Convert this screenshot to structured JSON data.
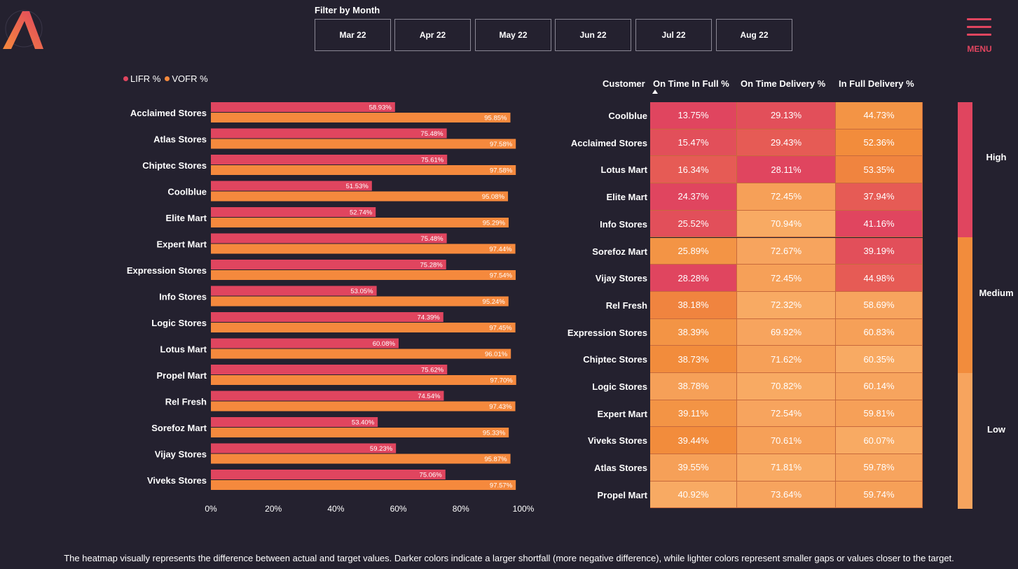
{
  "filter": {
    "title": "Filter by Month",
    "months": [
      "Mar 22",
      "Apr 22",
      "May 22",
      "Jun 22",
      "Jul 22",
      "Aug 22"
    ]
  },
  "menu": {
    "label": "MENU"
  },
  "colors": {
    "background": "#24212f",
    "lifr": "#e0455f",
    "vofr": "#f5893d",
    "high": "#e0455f",
    "medium": "#f28c3c",
    "low": "#f7a45e"
  },
  "legend": {
    "lifr": "LIFR %",
    "vofr": "VOFR %"
  },
  "chart_data": {
    "type": "bar",
    "orientation": "horizontal",
    "categories": [
      "Acclaimed Stores",
      "Atlas Stores",
      "Chiptec Stores",
      "Coolblue",
      "Elite Mart",
      "Expert Mart",
      "Expression Stores",
      "Info Stores",
      "Logic Stores",
      "Lotus Mart",
      "Propel Mart",
      "Rel Fresh",
      "Sorefoz Mart",
      "Vijay Stores",
      "Viveks Stores"
    ],
    "series": [
      {
        "name": "LIFR %",
        "values": [
          58.93,
          75.48,
          75.61,
          51.53,
          52.74,
          75.48,
          75.28,
          53.05,
          74.39,
          60.08,
          75.62,
          74.54,
          53.4,
          59.23,
          75.06
        ],
        "labels": [
          "58.93%",
          "75.48%",
          "75.61%",
          "51.53%",
          "52.74%",
          "75.48%",
          "75.28%",
          "53.05%",
          "74.39%",
          "60.08%",
          "75.62%",
          "74.54%",
          "53.40%",
          "59.23%",
          "75.06%"
        ]
      },
      {
        "name": "VOFR %",
        "values": [
          95.85,
          97.58,
          97.58,
          95.08,
          95.29,
          97.44,
          97.54,
          95.24,
          97.45,
          96.01,
          97.7,
          97.43,
          95.33,
          95.87,
          97.57
        ],
        "labels": [
          "95.85%",
          "97.58%",
          "97.58%",
          "95.08%",
          "95.29%",
          "97.44%",
          "97.54%",
          "95.24%",
          "97.45%",
          "96.01%",
          "97.70%",
          "97.43%",
          "95.33%",
          "95.87%",
          "97.57%"
        ]
      }
    ],
    "xlim": [
      0,
      100
    ],
    "xticks": [
      "0%",
      "20%",
      "40%",
      "60%",
      "80%",
      "100%"
    ],
    "legend_position": "top-left",
    "grid": false
  },
  "heatmap": {
    "headers": [
      "Customer",
      "On Time In Full %",
      "On Time Delivery %",
      "In Full Delivery %"
    ],
    "rows": [
      {
        "customer": "Coolblue",
        "values": [
          "13.75%",
          "29.13%",
          "44.73%"
        ],
        "levels": [
          "high",
          "high",
          "medium"
        ]
      },
      {
        "customer": "Acclaimed Stores",
        "values": [
          "15.47%",
          "29.43%",
          "52.36%"
        ],
        "levels": [
          "high",
          "high",
          "medium"
        ]
      },
      {
        "customer": "Lotus Mart",
        "values": [
          "16.34%",
          "28.11%",
          "53.35%"
        ],
        "levels": [
          "high",
          "high",
          "medium"
        ]
      },
      {
        "customer": "Elite Mart",
        "values": [
          "24.37%",
          "72.45%",
          "37.94%"
        ],
        "levels": [
          "high",
          "low",
          "high"
        ]
      },
      {
        "customer": "Info Stores",
        "values": [
          "25.52%",
          "70.94%",
          "41.16%"
        ],
        "levels": [
          "high",
          "low",
          "high"
        ]
      },
      {
        "customer": "Sorefoz Mart",
        "values": [
          "25.89%",
          "72.67%",
          "39.19%"
        ],
        "levels": [
          "medium",
          "low",
          "high"
        ]
      },
      {
        "customer": "Vijay Stores",
        "values": [
          "28.28%",
          "72.45%",
          "44.98%"
        ],
        "levels": [
          "high",
          "low",
          "high"
        ]
      },
      {
        "customer": "Rel Fresh",
        "values": [
          "38.18%",
          "72.32%",
          "58.69%"
        ],
        "levels": [
          "medium",
          "low",
          "low"
        ]
      },
      {
        "customer": "Expression Stores",
        "values": [
          "38.39%",
          "69.92%",
          "60.83%"
        ],
        "levels": [
          "medium",
          "low",
          "low"
        ]
      },
      {
        "customer": "Chiptec Stores",
        "values": [
          "38.73%",
          "71.62%",
          "60.35%"
        ],
        "levels": [
          "medium",
          "low",
          "low"
        ]
      },
      {
        "customer": "Logic Stores",
        "values": [
          "38.78%",
          "70.82%",
          "60.14%"
        ],
        "levels": [
          "low",
          "low",
          "low"
        ]
      },
      {
        "customer": "Expert Mart",
        "values": [
          "39.11%",
          "72.54%",
          "59.81%"
        ],
        "levels": [
          "medium",
          "low",
          "low"
        ]
      },
      {
        "customer": "Viveks Stores",
        "values": [
          "39.44%",
          "70.61%",
          "60.07%"
        ],
        "levels": [
          "medium",
          "low",
          "low"
        ]
      },
      {
        "customer": "Atlas Stores",
        "values": [
          "39.55%",
          "71.81%",
          "59.78%"
        ],
        "levels": [
          "low",
          "low",
          "low"
        ]
      },
      {
        "customer": "Propel Mart",
        "values": [
          "40.92%",
          "73.64%",
          "59.74%"
        ],
        "levels": [
          "low",
          "low",
          "low"
        ]
      }
    ],
    "sorted_column": "On Time In Full %"
  },
  "scale_legend": {
    "high": "High",
    "medium": "Medium",
    "low": "Low"
  },
  "footer": {
    "text": "The heatmap visually represents the difference between actual and target values. Darker colors indicate a larger shortfall (more negative difference), while lighter colors represent smaller gaps or values closer to the target."
  }
}
